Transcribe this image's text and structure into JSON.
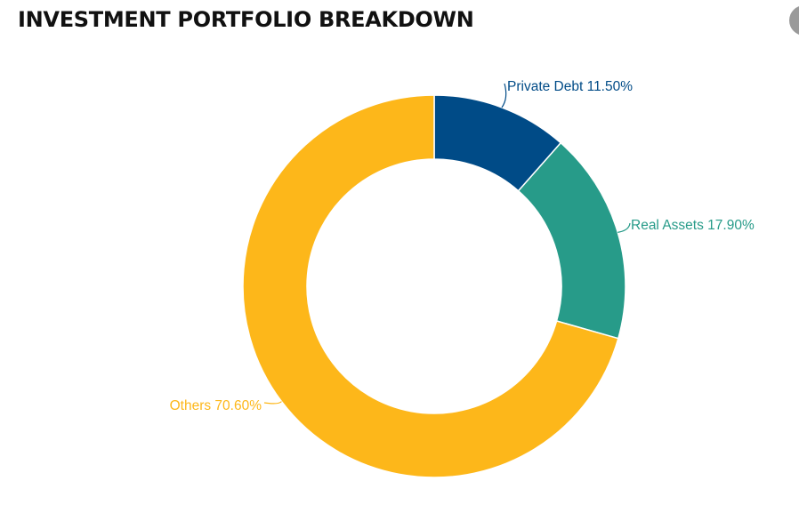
{
  "header": {
    "title": "INVESTMENT PORTFOLIO BREAKDOWN"
  },
  "chart_data": {
    "type": "pie",
    "variant": "donut",
    "title": "INVESTMENT PORTFOLIO BREAKDOWN",
    "slices": [
      {
        "label": "Private Debt",
        "value": 11.5,
        "display": "Private Debt 11.50%",
        "color": "#004b87"
      },
      {
        "label": "Real Assets",
        "value": 17.9,
        "display": "Real Assets 17.90%",
        "color": "#279b89"
      },
      {
        "label": "Others",
        "value": 70.6,
        "display": "Others 70.60%",
        "color": "#fdb71a"
      }
    ],
    "legend": "none",
    "labels": "outside"
  }
}
